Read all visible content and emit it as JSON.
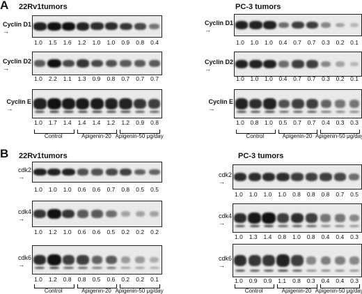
{
  "sections": [
    {
      "letter": "A",
      "panels": [
        {
          "title": "22Rv1tumors",
          "rows": [
            {
              "label": "Cyclin D1",
              "values": [
                "1.0",
                "1.5",
                "1.6",
                "1.2",
                "1.0",
                "1.0",
                "0.9",
                "0.8",
                "0.4"
              ]
            },
            {
              "label": "Cyclin D2",
              "values": [
                "1.0",
                "2.2",
                "1.1",
                "1.3",
                "0.9",
                "0.8",
                "0.7",
                "0.7",
                "0.7"
              ]
            },
            {
              "label": "Cyclin E",
              "values": [
                "1.0",
                "1.7",
                "1.4",
                "1.4",
                "1.4",
                "1.2",
                "1.2",
                "0.9",
                "0.8"
              ]
            }
          ],
          "groups": [
            "Control",
            "Apigenin-20",
            "Apigenin-50 μg/day"
          ]
        },
        {
          "title": "PC-3 tumors",
          "rows": [
            {
              "label": "Cyclin D1",
              "values": [
                "1.0",
                "1.0",
                "1.0",
                "0.4",
                "0.7",
                "0.7",
                "0.3",
                "0.2",
                "0.1"
              ]
            },
            {
              "label": "Cyclin D2",
              "values": [
                "1.0",
                "1.0",
                "1.0",
                "0.4",
                "0.7",
                "0.7",
                "0.3",
                "0.2",
                "0.1"
              ]
            },
            {
              "label": "Cyclin E",
              "values": [
                "1.0",
                "0.8",
                "1.0",
                "0.5",
                "0.7",
                "0.7",
                "0.4",
                "0.3",
                "0.3"
              ]
            }
          ],
          "groups": [
            "Control",
            "Apigenin-20",
            "Apigenin-50 μg/day"
          ]
        }
      ]
    },
    {
      "letter": "B",
      "panels": [
        {
          "title": "22Rv1tumors",
          "rows": [
            {
              "label": "cdk2",
              "values": [
                "1.0",
                "1.0",
                "1.0",
                "0.6",
                "0.6",
                "0.7",
                "0.8",
                "0.5",
                "0.5"
              ]
            },
            {
              "label": "cdk4",
              "values": [
                "1.0",
                "1.2",
                "1.0",
                "0.6",
                "0.6",
                "0.5",
                "0.2",
                "0.2",
                "0.2"
              ]
            },
            {
              "label": "cdk6",
              "values": [
                "1.0",
                "1.2",
                "0.8",
                "0.8",
                "0.5",
                "0.6",
                "0.2",
                "0.2",
                "0.1"
              ]
            }
          ],
          "groups": [
            "Control",
            "Apigenin-20",
            "Apigenin-50 μg/day"
          ]
        },
        {
          "title": "PC-3 tumors",
          "rows": [
            {
              "label": "cdk2",
              "values": [
                "1.0",
                "1.0",
                "1.0",
                "1.0",
                "0.8",
                "0.8",
                "0.8",
                "0.7",
                "0.5"
              ]
            },
            {
              "label": "cdk4",
              "values": [
                "1.0",
                "1.3",
                "1.4",
                "0.8",
                "1.0",
                "0.8",
                "0.4",
                "0.4",
                "0.3"
              ]
            },
            {
              "label": "cdk6",
              "values": [
                "1.0",
                "0.9",
                "0.9",
                "1.1",
                "0.8",
                "0.3",
                "0.4",
                "0.4",
                "0.3"
              ]
            }
          ],
          "groups": [
            "Control",
            "Apigenin-20",
            "Apigenin-50 μg/day"
          ]
        }
      ]
    }
  ],
  "intensities": [
    [
      [
        0.9,
        1.0,
        1.0,
        0.9,
        0.85,
        0.85,
        0.8,
        0.7,
        0.45
      ],
      [
        0.6,
        1.0,
        0.7,
        0.8,
        0.7,
        0.65,
        0.6,
        0.6,
        0.6
      ],
      [
        0.9,
        1.0,
        0.95,
        0.95,
        0.95,
        0.9,
        0.9,
        0.8,
        0.75
      ]
    ],
    [
      [
        0.9,
        0.9,
        0.9,
        0.5,
        0.75,
        0.75,
        0.35,
        0.2,
        0.1
      ],
      [
        0.9,
        0.9,
        0.9,
        0.5,
        0.75,
        0.75,
        0.35,
        0.2,
        0.1
      ],
      [
        0.9,
        0.85,
        0.9,
        0.65,
        0.75,
        0.75,
        0.55,
        0.45,
        0.45
      ]
    ],
    [
      [
        0.9,
        0.9,
        0.9,
        0.65,
        0.65,
        0.7,
        0.75,
        0.55,
        0.55
      ],
      [
        0.8,
        1.0,
        0.8,
        0.6,
        0.6,
        0.5,
        0.2,
        0.2,
        0.2
      ],
      [
        0.85,
        1.0,
        0.75,
        0.75,
        0.55,
        0.6,
        0.25,
        0.25,
        0.15
      ]
    ],
    [
      [
        0.85,
        0.85,
        0.85,
        0.85,
        0.75,
        0.75,
        0.75,
        0.7,
        0.5
      ],
      [
        0.85,
        0.95,
        1.0,
        0.75,
        0.85,
        0.75,
        0.45,
        0.45,
        0.35
      ],
      [
        0.85,
        0.8,
        0.8,
        0.9,
        0.75,
        0.35,
        0.4,
        0.4,
        0.35
      ]
    ]
  ]
}
